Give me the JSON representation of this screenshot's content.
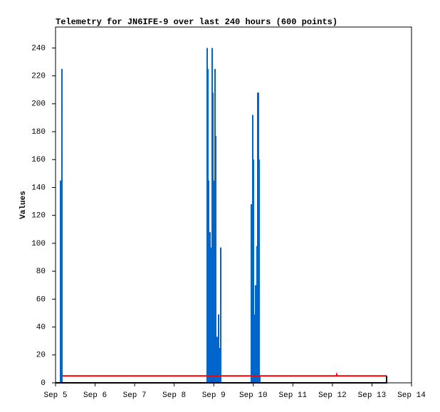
{
  "chart_data": {
    "type": "bar",
    "title": "Telemetry for JN6IFE-9 over last 240 hours (600 points)",
    "y_label": "Values",
    "xlim": [
      5,
      14
    ],
    "xticks": [
      {
        "value": 5,
        "label": "Sep 5"
      },
      {
        "value": 6,
        "label": "Sep 6"
      },
      {
        "value": 7,
        "label": "Sep 7"
      },
      {
        "value": 8,
        "label": "Sep 8"
      },
      {
        "value": 9,
        "label": "Sep 9"
      },
      {
        "value": 10,
        "label": "Sep 10"
      },
      {
        "value": 11,
        "label": "Sep 11"
      },
      {
        "value": 12,
        "label": "Sep 12"
      },
      {
        "value": 13,
        "label": "Sep 13"
      },
      {
        "value": 14,
        "label": "Sep 14"
      }
    ],
    "ylim": [
      0,
      255
    ],
    "yticks": [
      0,
      20,
      40,
      60,
      80,
      100,
      120,
      140,
      160,
      180,
      200,
      220,
      240
    ],
    "series": [
      {
        "type": "bar",
        "color": "#0066cc",
        "x": [
          5.126,
          5.162,
          8.834,
          8.852,
          8.87,
          8.906,
          8.924,
          8.96,
          8.978,
          8.996,
          9.032,
          9.05,
          9.086,
          9.122,
          9.158,
          9.176,
          9.95,
          9.986,
          10.004,
          10.022,
          10.04,
          10.058,
          10.076,
          10.094,
          10.112,
          10.13,
          10.148,
          10.166
        ],
        "values": [
          145,
          225,
          240,
          225,
          145,
          108,
          97,
          240,
          208,
          145,
          225,
          177,
          33,
          49,
          25,
          97,
          128,
          192,
          160,
          49,
          43,
          70,
          15,
          98,
          208,
          208,
          160,
          5
        ]
      },
      {
        "type": "line",
        "color": "#ff0000",
        "x": [
          5.18,
          12.1,
          12.11,
          12.12,
          13.37
        ],
        "values": [
          5,
          5,
          6,
          5,
          5
        ]
      },
      {
        "type": "line",
        "color": "#000000",
        "x": [
          5,
          13.37,
          13.37
        ],
        "values": [
          0,
          0,
          5
        ]
      }
    ]
  }
}
